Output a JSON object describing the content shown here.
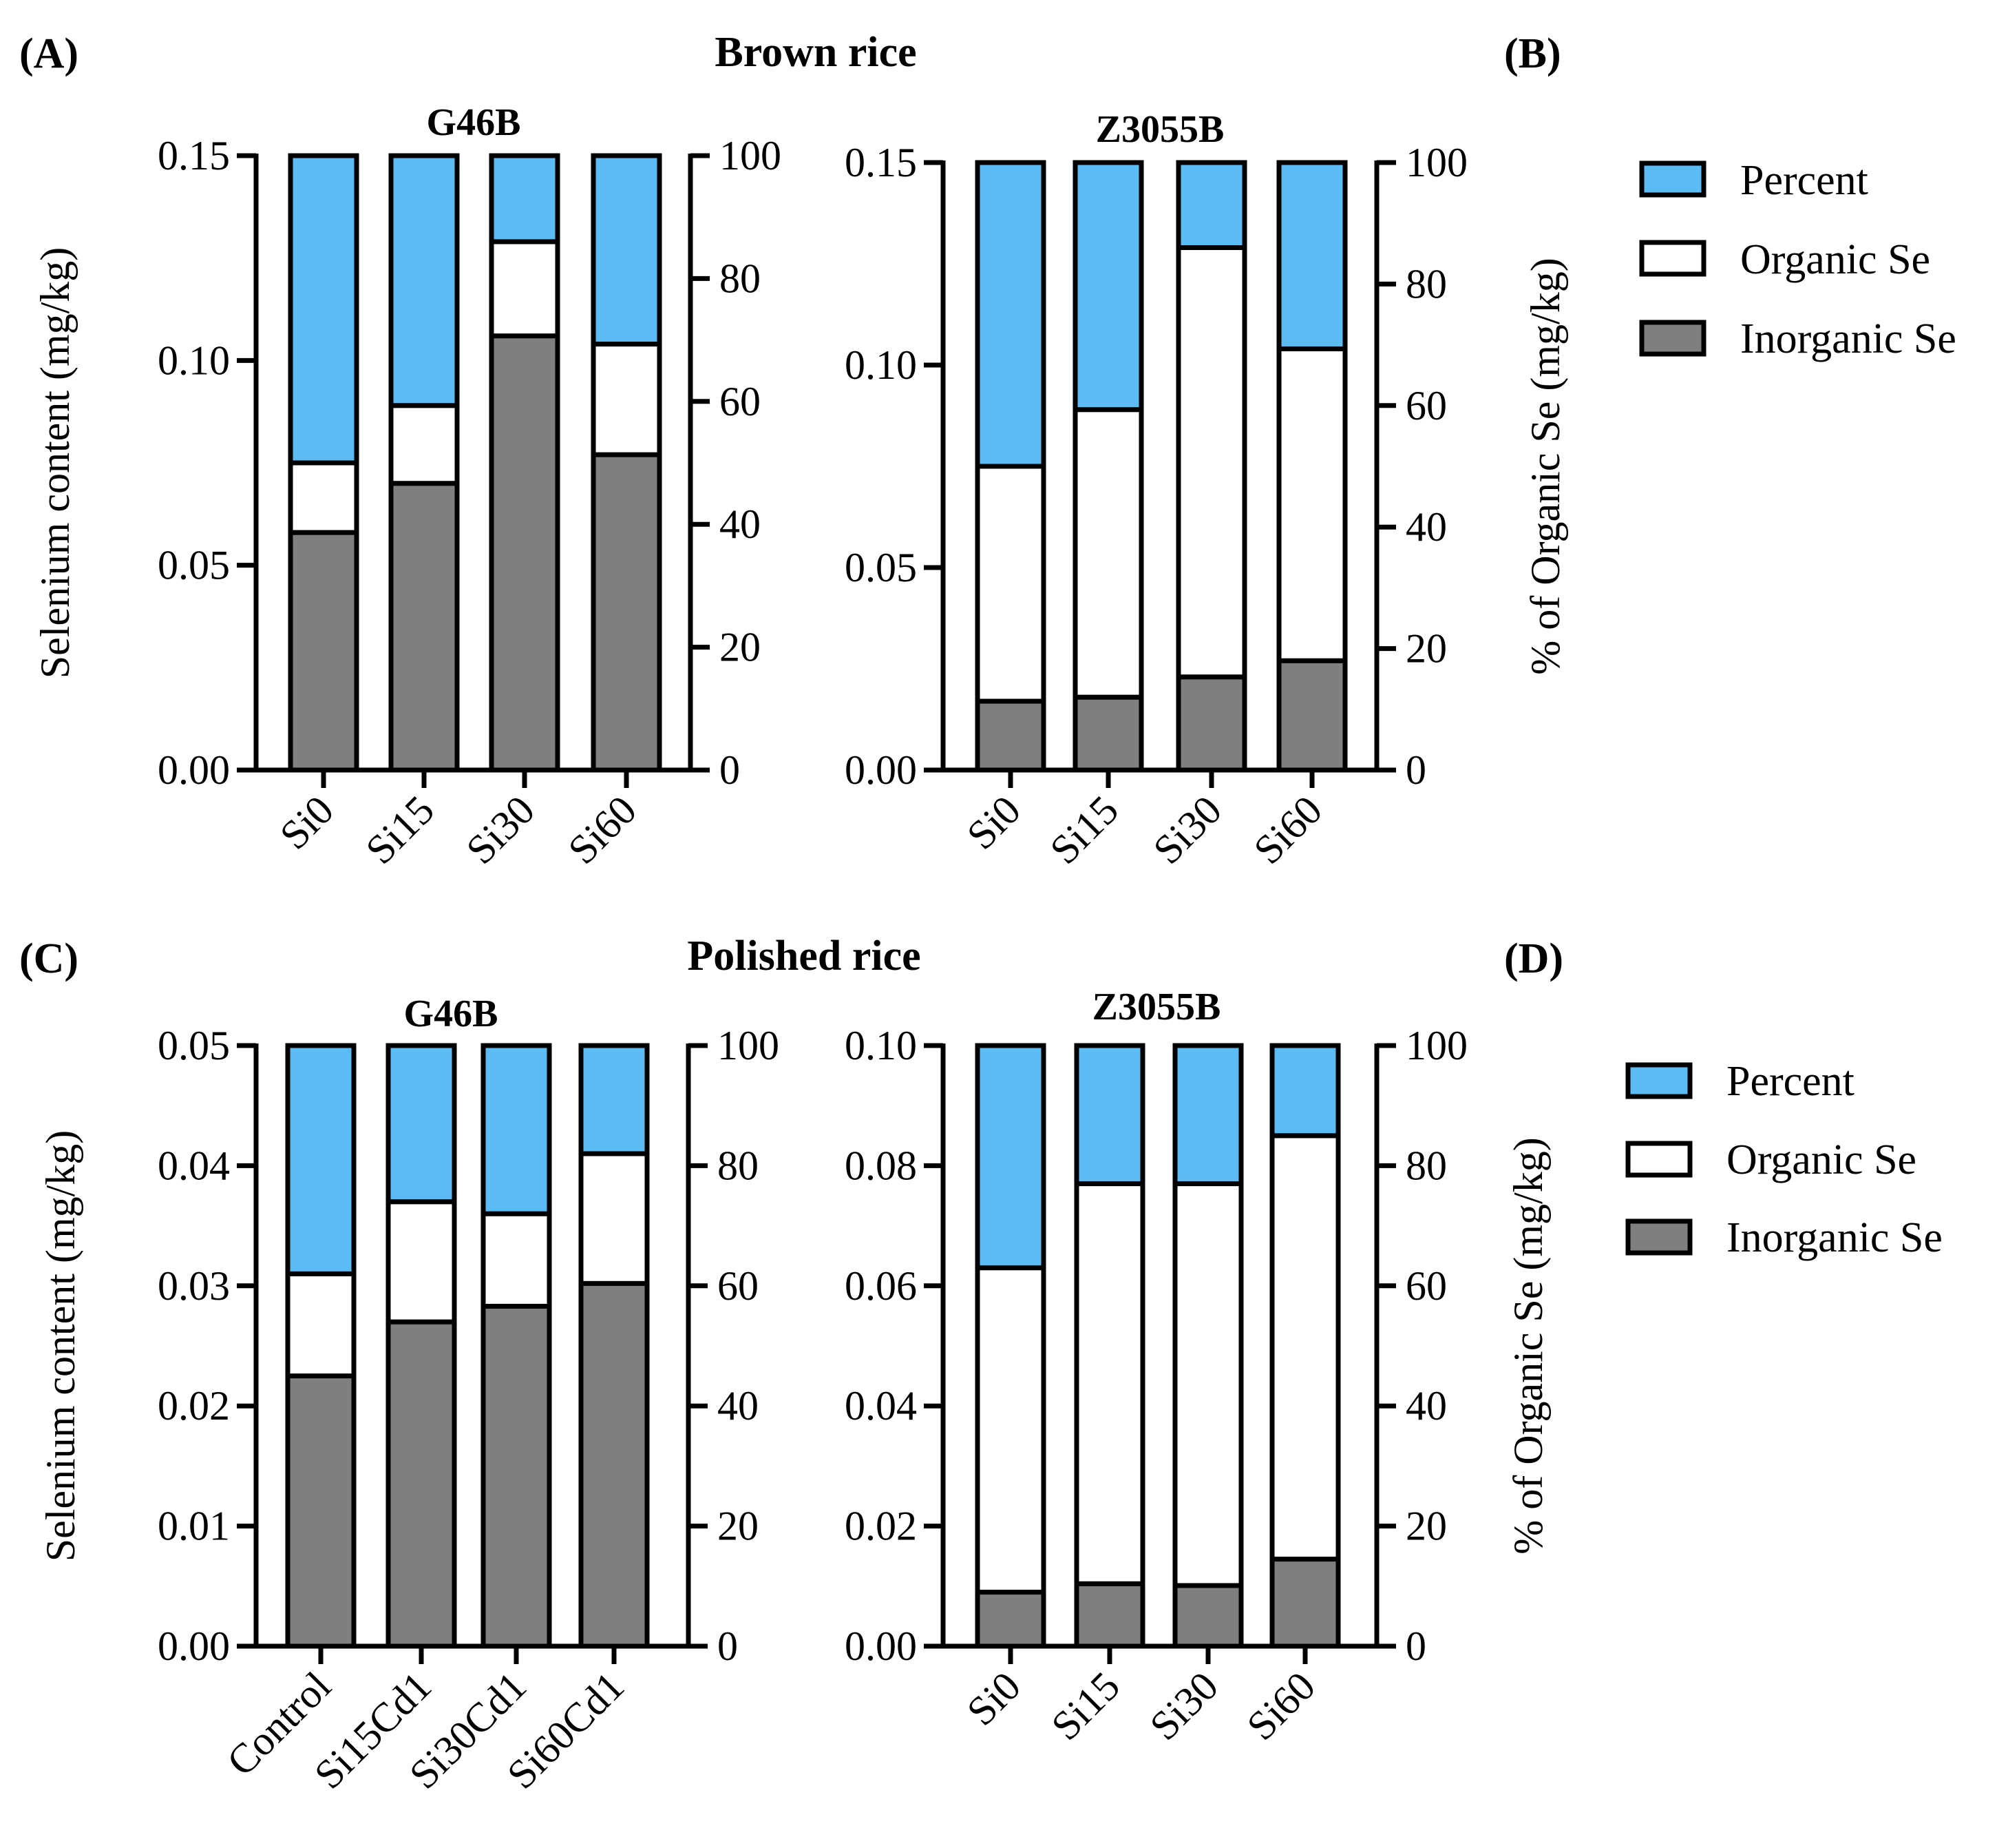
{
  "panel_labels": {
    "A": "(A)",
    "B": "(B)",
    "C": "(C)",
    "D": "(D)"
  },
  "section_titles": {
    "top": "Brown rice",
    "bottom": "Polished rice"
  },
  "legends": {
    "top": {
      "items": [
        {
          "label": "Percent",
          "color": "#5bbcf5"
        },
        {
          "label": "Organic Se",
          "color": "#ffffff"
        },
        {
          "label": "Inorganic Se",
          "color": "#7f7f7f"
        }
      ]
    },
    "bottom": {
      "items": [
        {
          "label": "Percent",
          "color": "#5bbcf5"
        },
        {
          "label": "Organic Se",
          "color": "#ffffff"
        },
        {
          "label": "Inorganic Se",
          "color": "#7f7f7f"
        }
      ]
    }
  },
  "chart_data": [
    {
      "id": "brown-g46b",
      "type": "bar",
      "stacked": true,
      "title": "G46B",
      "ylabel": "Selenium content (mg/kg)",
      "y2label": "",
      "ylim": [
        0,
        0.15
      ],
      "yticks": [
        "0.00",
        "0.05",
        "0.10",
        "0.15"
      ],
      "y2lim": [
        0,
        100
      ],
      "y2ticks": [
        "0",
        "20",
        "40",
        "60",
        "80",
        "100"
      ],
      "categories": [
        "Si0",
        "Si15",
        "Si30",
        "Si60"
      ],
      "series": [
        {
          "name": "Inorganic Se",
          "color": "#7f7f7f",
          "values": [
            0.058,
            0.07,
            0.106,
            0.077
          ]
        },
        {
          "name": "Organic Se",
          "color": "#ffffff",
          "values": [
            0.017,
            0.019,
            0.023,
            0.027
          ]
        },
        {
          "name": "Percent",
          "color": "#5bbcf5",
          "values": [
            0.075,
            0.061,
            0.021,
            0.046
          ]
        }
      ]
    },
    {
      "id": "brown-z3055b",
      "type": "bar",
      "stacked": true,
      "title": "Z3055B",
      "ylabel": "",
      "y2label": "% of Organic Se (mg/kg)",
      "ylim": [
        0,
        0.15
      ],
      "yticks": [
        "0.00",
        "0.05",
        "0.10",
        "0.15"
      ],
      "y2lim": [
        0,
        100
      ],
      "y2ticks": [
        "0",
        "20",
        "40",
        "60",
        "80",
        "100"
      ],
      "categories": [
        "Si0",
        "Si15",
        "Si30",
        "Si60"
      ],
      "series": [
        {
          "name": "Inorganic Se",
          "color": "#7f7f7f",
          "values": [
            0.017,
            0.018,
            0.023,
            0.027
          ]
        },
        {
          "name": "Organic Se",
          "color": "#ffffff",
          "values": [
            0.058,
            0.071,
            0.106,
            0.077
          ]
        },
        {
          "name": "Percent",
          "color": "#5bbcf5",
          "values": [
            0.075,
            0.061,
            0.021,
            0.046
          ]
        }
      ]
    },
    {
      "id": "polished-g46b",
      "type": "bar",
      "stacked": true,
      "title": "G46B",
      "ylabel": "Selenium content (mg/kg)",
      "y2label": "",
      "ylim": [
        0,
        0.05
      ],
      "yticks": [
        "0.00",
        "0.01",
        "0.02",
        "0.03",
        "0.04",
        "0.05"
      ],
      "y2lim": [
        0,
        100
      ],
      "y2ticks": [
        "0",
        "20",
        "40",
        "60",
        "80",
        "100"
      ],
      "categories": [
        "Control",
        "Si15Cd1",
        "Si30Cd1",
        "Si60Cd1"
      ],
      "series": [
        {
          "name": "Inorganic Se",
          "color": "#7f7f7f",
          "values": [
            0.0225,
            0.027,
            0.0283,
            0.0302
          ]
        },
        {
          "name": "Organic Se",
          "color": "#ffffff",
          "values": [
            0.0085,
            0.01,
            0.0077,
            0.0108
          ]
        },
        {
          "name": "Percent",
          "color": "#5bbcf5",
          "values": [
            0.019,
            0.013,
            0.014,
            0.009
          ]
        }
      ]
    },
    {
      "id": "polished-z3055b",
      "type": "bar",
      "stacked": true,
      "title": "Z3055B",
      "ylabel": "",
      "y2label": "% of Organic Se (mg/kg)",
      "ylim": [
        0,
        0.1
      ],
      "yticks": [
        "0.00",
        "0.02",
        "0.04",
        "0.06",
        "0.08",
        "0.10"
      ],
      "y2lim": [
        0,
        100
      ],
      "y2ticks": [
        "0",
        "20",
        "40",
        "60",
        "80",
        "100"
      ],
      "categories": [
        "Si0",
        "Si15",
        "Si30",
        "Si60"
      ],
      "series": [
        {
          "name": "Inorganic Se",
          "color": "#7f7f7f",
          "values": [
            0.009,
            0.0104,
            0.0101,
            0.0145
          ]
        },
        {
          "name": "Organic Se",
          "color": "#ffffff",
          "values": [
            0.054,
            0.0666,
            0.0669,
            0.0705
          ]
        },
        {
          "name": "Percent",
          "color": "#5bbcf5",
          "values": [
            0.037,
            0.023,
            0.023,
            0.015
          ]
        }
      ]
    }
  ]
}
